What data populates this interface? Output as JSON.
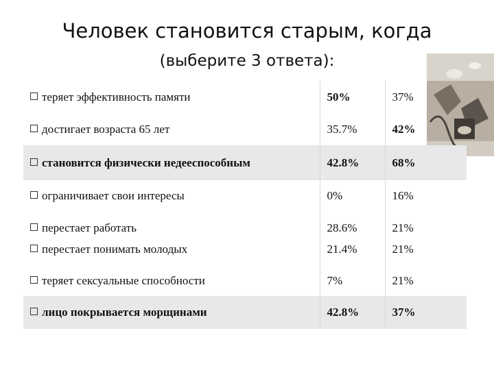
{
  "title": {
    "line1": "Человек становится старым, когда",
    "line2": "(выберите 3 ответа):"
  },
  "rows": [
    {
      "label": "теряет эффективность памяти",
      "a": "50%",
      "b": "37%",
      "bold_a": true,
      "bold_b": false
    },
    {
      "label": "достигает возраста 65 лет",
      "a": "35.7%",
      "b": "42%",
      "bold_a": false,
      "bold_b": true
    },
    {
      "label": "становится физически недееспособным",
      "a": "42.8%",
      "b": "68%",
      "highlighted": true
    },
    {
      "label": "ограничивает свои интересы",
      "a": "0%",
      "b": "16%"
    },
    {
      "label": "перестает работать",
      "a": "28.6%",
      "b": "21%"
    },
    {
      "label": "перестает понимать молодых",
      "a": "21.4%",
      "b": "21%"
    },
    {
      "label": "теряет сексуальные способности",
      "a": "7%",
      "b": "21%"
    },
    {
      "label": "лицо покрывается морщинами",
      "a": "42.8%",
      "b": "37%",
      "highlighted": true
    }
  ],
  "colors": {
    "highlight_row": "#e8e8e8",
    "text": "#111111"
  },
  "icons": {
    "checkbox": "checkbox-icon",
    "painting": "surreal-painting-image"
  }
}
